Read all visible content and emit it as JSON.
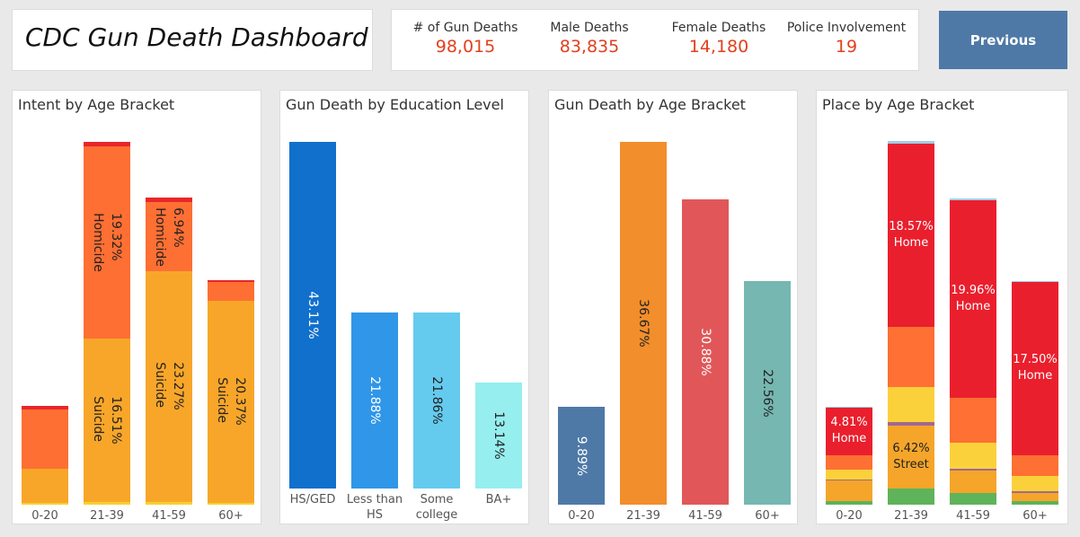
{
  "header": {
    "title": "CDC Gun Death Dashboard",
    "kpis": [
      {
        "label": "# of Gun Deaths",
        "value": "98,015"
      },
      {
        "label": "Male Deaths",
        "value": "83,835"
      },
      {
        "label": "Female Deaths",
        "value": "14,180"
      },
      {
        "label": "Police Involvement",
        "value": "19"
      }
    ],
    "button": "Previous"
  },
  "chart_data": [
    {
      "type": "stacked_bar",
      "title": "Intent by Age Bracket",
      "categories": [
        "0-20",
        "21-39",
        "41-59",
        "60+"
      ],
      "series": [
        {
          "color": "#f5d130",
          "values": [
            0.2,
            0.3,
            0.3,
            0.2
          ]
        },
        {
          "name": "Suicide",
          "color": "#f8a629",
          "values": [
            3.4,
            16.51,
            23.27,
            20.37
          ],
          "value_labels": [
            null,
            "16.51%",
            "23.27%",
            "20.37%"
          ]
        },
        {
          "name": "Homicide",
          "color": "#fe6f33",
          "values": [
            6.0,
            19.32,
            6.94,
            1.9
          ],
          "value_labels": [
            null,
            "19.32%",
            "6.94%",
            null
          ]
        },
        {
          "color": "#e8262a",
          "values": [
            0.4,
            0.5,
            0.5,
            0.2
          ]
        }
      ]
    },
    {
      "type": "bar",
      "title": "Gun Death by Education Level",
      "categories": [
        "HS/GED",
        "Less than HS",
        "Some college",
        "BA+"
      ],
      "values": [
        43.11,
        21.88,
        21.86,
        13.14
      ],
      "value_labels": [
        "43.11%",
        "21.88%",
        "21.86%",
        "13.14%"
      ],
      "colors": [
        "#1170cc",
        "#2f96e8",
        "#64cbef",
        "#96eeef"
      ]
    },
    {
      "type": "bar",
      "title": "Gun Death by Age Bracket",
      "categories": [
        "0-20",
        "21-39",
        "41-59",
        "60+"
      ],
      "values": [
        9.89,
        36.67,
        30.88,
        22.56
      ],
      "value_labels": [
        "9.89%",
        "36.67%",
        "30.88%",
        "22.56%"
      ],
      "colors": [
        "#4e79a7",
        "#f28e2b",
        "#e15759",
        "#76b7b2"
      ]
    },
    {
      "type": "stacked_bar",
      "title": "Place by Age Bracket",
      "categories": [
        "0-20",
        "21-39",
        "41-59",
        "60+"
      ],
      "series": [
        {
          "color": "#5fb35a",
          "values": [
            0.35,
            1.6,
            1.2,
            0.35
          ]
        },
        {
          "name": "Street",
          "color": "#f5a52a",
          "values": [
            2.1,
            6.42,
            2.2,
            0.85
          ],
          "value_labels": [
            null,
            "6.42%",
            null,
            null
          ]
        },
        {
          "color": "#a0698f",
          "values": [
            0.1,
            0.3,
            0.2,
            0.2
          ]
        },
        {
          "color": "#fbd13b",
          "values": [
            1.0,
            3.6,
            2.7,
            1.5
          ]
        },
        {
          "color": "#fe7033",
          "values": [
            1.45,
            6.0,
            4.45,
            2.1
          ]
        },
        {
          "name": "Home",
          "color": "#ea1f2d",
          "values": [
            4.81,
            18.57,
            19.96,
            17.5
          ],
          "value_labels": [
            "4.81%",
            "18.57%",
            "19.96%",
            "17.50%"
          ]
        },
        {
          "color": "#9fcfe8",
          "values": [
            0.05,
            0.2,
            0.2,
            0.05
          ]
        }
      ]
    }
  ]
}
